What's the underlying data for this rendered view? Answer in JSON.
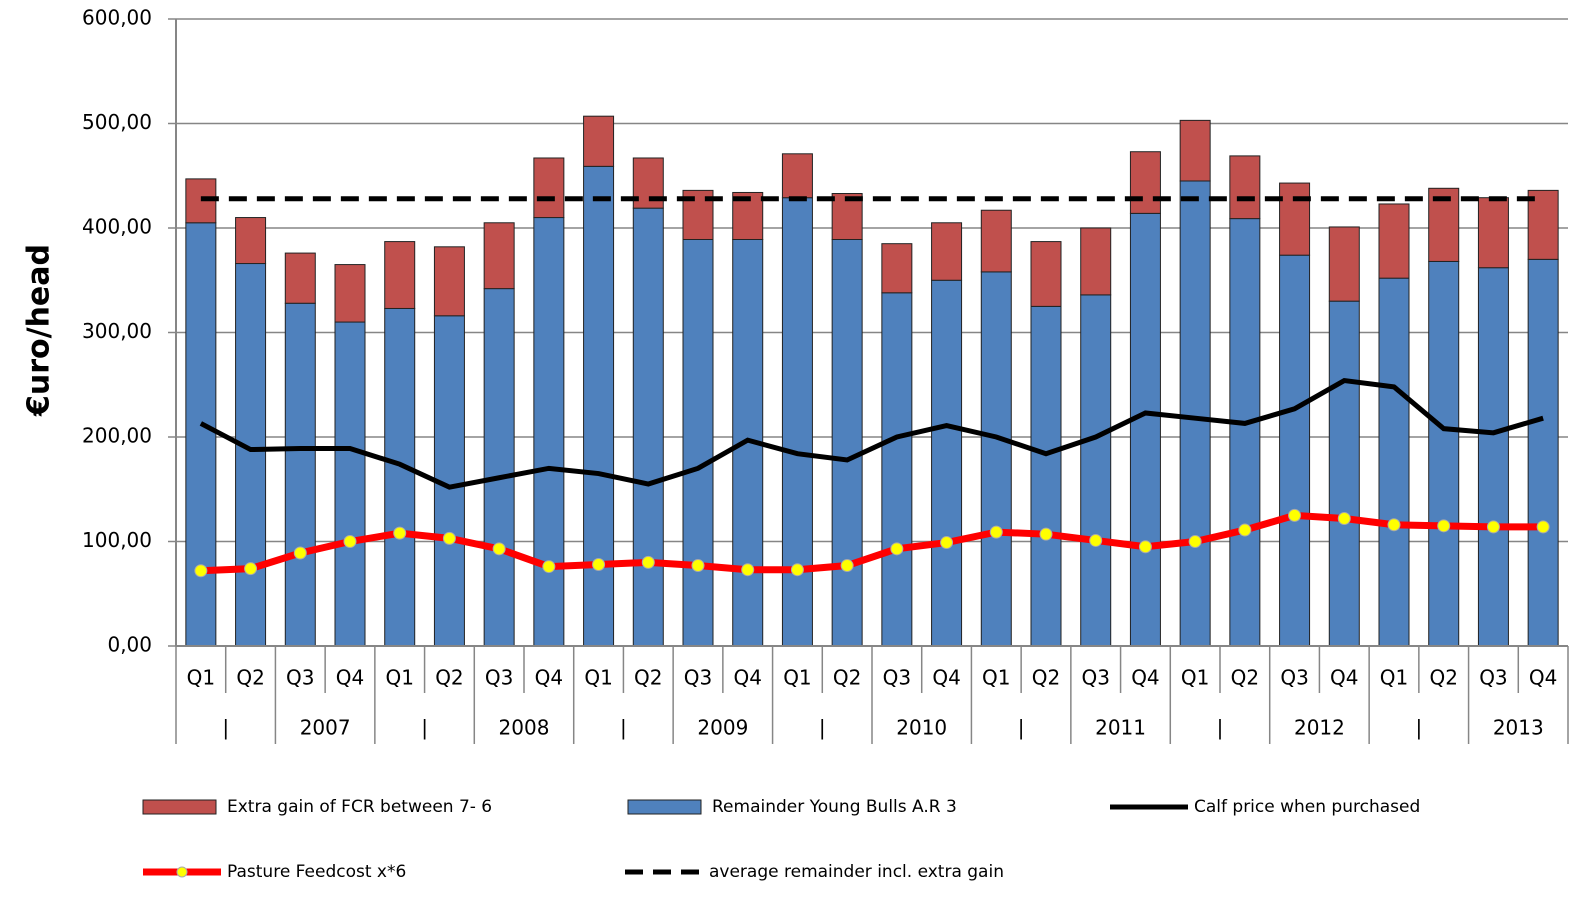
{
  "chart_data": {
    "type": "bar",
    "y_label": "€uro/head",
    "categories": [
      "Q1",
      "Q2",
      "Q3",
      "Q4",
      "Q1",
      "Q2",
      "Q3",
      "Q4",
      "Q1",
      "Q2",
      "Q3",
      "Q4",
      "Q1",
      "Q2",
      "Q3",
      "Q4",
      "Q1",
      "Q2",
      "Q3",
      "Q4",
      "Q1",
      "Q2",
      "Q3",
      "Q4",
      "Q1",
      "Q2",
      "Q3",
      "Q4"
    ],
    "category_groups": [
      "|",
      "2007",
      "|",
      "2008",
      "|",
      "2009",
      "|",
      "2010",
      "|",
      "2011",
      "|",
      "2012",
      "|",
      "2013"
    ],
    "ylim": [
      0,
      600
    ],
    "yticks": [
      {
        "value": 0,
        "label": "0,00"
      },
      {
        "value": 100,
        "label": "100,00"
      },
      {
        "value": 200,
        "label": "200,00"
      },
      {
        "value": 300,
        "label": "300,00"
      },
      {
        "value": 400,
        "label": "400,00"
      },
      {
        "value": 500,
        "label": "500,00"
      },
      {
        "value": 600,
        "label": "600,00"
      }
    ],
    "series": [
      {
        "name": "Extra gain of FCR between 7- 6",
        "type": "bar",
        "stack": 1,
        "color": "#c0504d",
        "values": [
          42,
          44,
          48,
          55,
          64,
          66,
          63,
          57,
          48,
          48,
          47,
          45,
          42,
          44,
          47,
          55,
          59,
          62,
          64,
          59,
          58,
          60,
          69,
          71,
          71,
          70,
          67,
          66
        ]
      },
      {
        "name": "Remainder Young Bulls A.R 3",
        "type": "bar",
        "stack": 0,
        "color": "#4f81bd",
        "values": [
          405,
          366,
          328,
          310,
          323,
          316,
          342,
          410,
          459,
          419,
          389,
          389,
          429,
          389,
          338,
          350,
          358,
          325,
          336,
          414,
          445,
          409,
          374,
          330,
          352,
          368,
          362,
          370
        ]
      },
      {
        "name": "Calf price when purchased",
        "type": "line",
        "color": "#000000",
        "values": [
          213,
          188,
          189,
          189,
          174,
          152,
          161,
          170,
          165,
          155,
          170,
          197,
          184,
          178,
          200,
          211,
          200,
          184,
          200,
          223,
          218,
          213,
          227,
          254,
          248,
          208,
          204,
          218
        ]
      },
      {
        "name": "Pasture Feedcost x*6",
        "type": "line",
        "color": "#ff0000",
        "marker": "#ffff00",
        "values": [
          72,
          74,
          89,
          100,
          108,
          103,
          93,
          76,
          78,
          80,
          77,
          73,
          73,
          77,
          93,
          99,
          109,
          107,
          101,
          95,
          100,
          111,
          125,
          122,
          116,
          115,
          114,
          114
        ]
      },
      {
        "name": "average remainder incl. extra gain",
        "type": "line",
        "color": "#000000",
        "dashed": true,
        "values": [
          428,
          428,
          428,
          428,
          428,
          428,
          428,
          428,
          428,
          428,
          428,
          428,
          428,
          428,
          428,
          428,
          428,
          428,
          428,
          428,
          428,
          428,
          428,
          428,
          428,
          428,
          428,
          428
        ]
      }
    ]
  }
}
